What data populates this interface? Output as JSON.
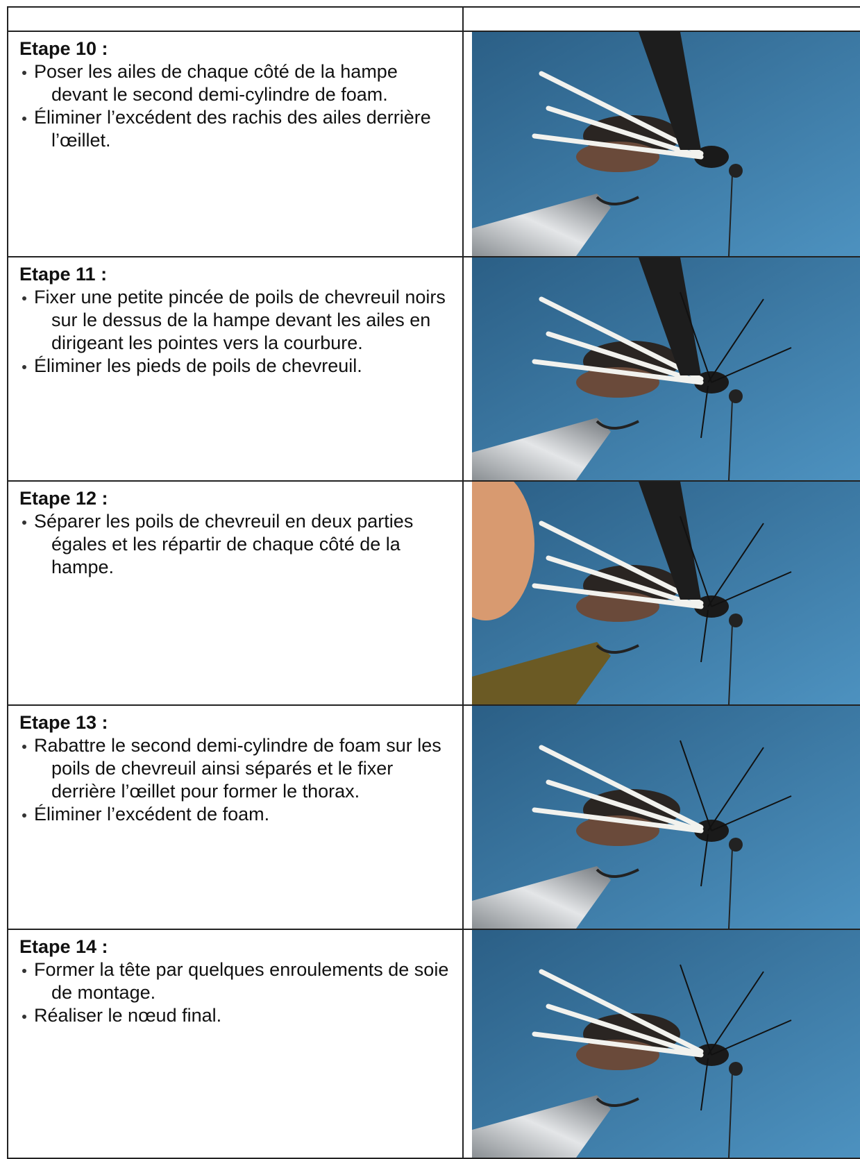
{
  "steps": [
    {
      "title": "Etape 10 :",
      "bullets": [
        "Poser les ailes de chaque côté de la hampe devant le second demi-cylindre de foam.",
        "Éliminer l’excédent des rachis des ailes derrière l’œillet."
      ]
    },
    {
      "title": "Etape 11 :",
      "bullets": [
        "Fixer une petite pincée de poils de chevreuil noirs sur le dessus de la hampe devant les ailes en dirigeant les pointes vers la courbure.",
        "Éliminer les pieds de poils de chevreuil."
      ]
    },
    {
      "title": "Etape 12 :",
      "bullets": [
        "Séparer les poils de chevreuil en deux parties égales et les répartir de chaque côté de la hampe."
      ]
    },
    {
      "title": "Etape 13 :",
      "bullets": [
        "Rabattre le second demi-cylindre de foam sur les poils de chevreuil ainsi séparés et le fixer derrière l’œillet pour former le thorax.",
        "Éliminer l’excédent de foam."
      ]
    },
    {
      "title": "Etape 14 :",
      "bullets": [
        "Former la tête par quelques enroulements de soie de montage.",
        "Réaliser le nœud final."
      ]
    }
  ]
}
